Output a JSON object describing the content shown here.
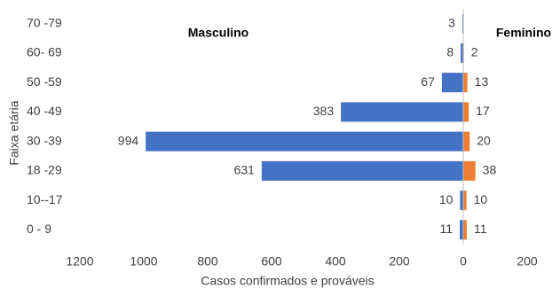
{
  "chart_data": {
    "type": "pyramid",
    "x_label": "Casos confirmados e prováveis",
    "y_label": "Faixa etária",
    "annotations": [
      "Masculino",
      "Feminino"
    ],
    "categories": [
      "70 -79",
      "60- 69",
      "50 -59",
      "40 -49",
      "30 -39",
      "18 -29",
      "10--17",
      "0 - 9"
    ],
    "series": [
      {
        "name": "Masculino",
        "color": "#4472c4",
        "values": [
          -3,
          -8,
          -67,
          -383,
          -994,
          -631,
          -10,
          -11
        ],
        "value_labels": [
          "3",
          "8",
          "67",
          "383",
          "994",
          "631",
          "10",
          "11"
        ]
      },
      {
        "name": "Feminino",
        "color": "#ed7d31",
        "values": [
          null,
          2,
          13,
          17,
          20,
          38,
          10,
          11
        ]
      }
    ],
    "xlim": [
      -1200,
      200
    ],
    "xticks": [
      {
        "value": -1200,
        "label": "1200"
      },
      {
        "value": -1000,
        "label": "1000"
      },
      {
        "value": -800,
        "label": "800"
      },
      {
        "value": -600,
        "label": "600"
      },
      {
        "value": -400,
        "label": "400"
      },
      {
        "value": -200,
        "label": "200"
      },
      0,
      200
    ],
    "grid": false
  }
}
